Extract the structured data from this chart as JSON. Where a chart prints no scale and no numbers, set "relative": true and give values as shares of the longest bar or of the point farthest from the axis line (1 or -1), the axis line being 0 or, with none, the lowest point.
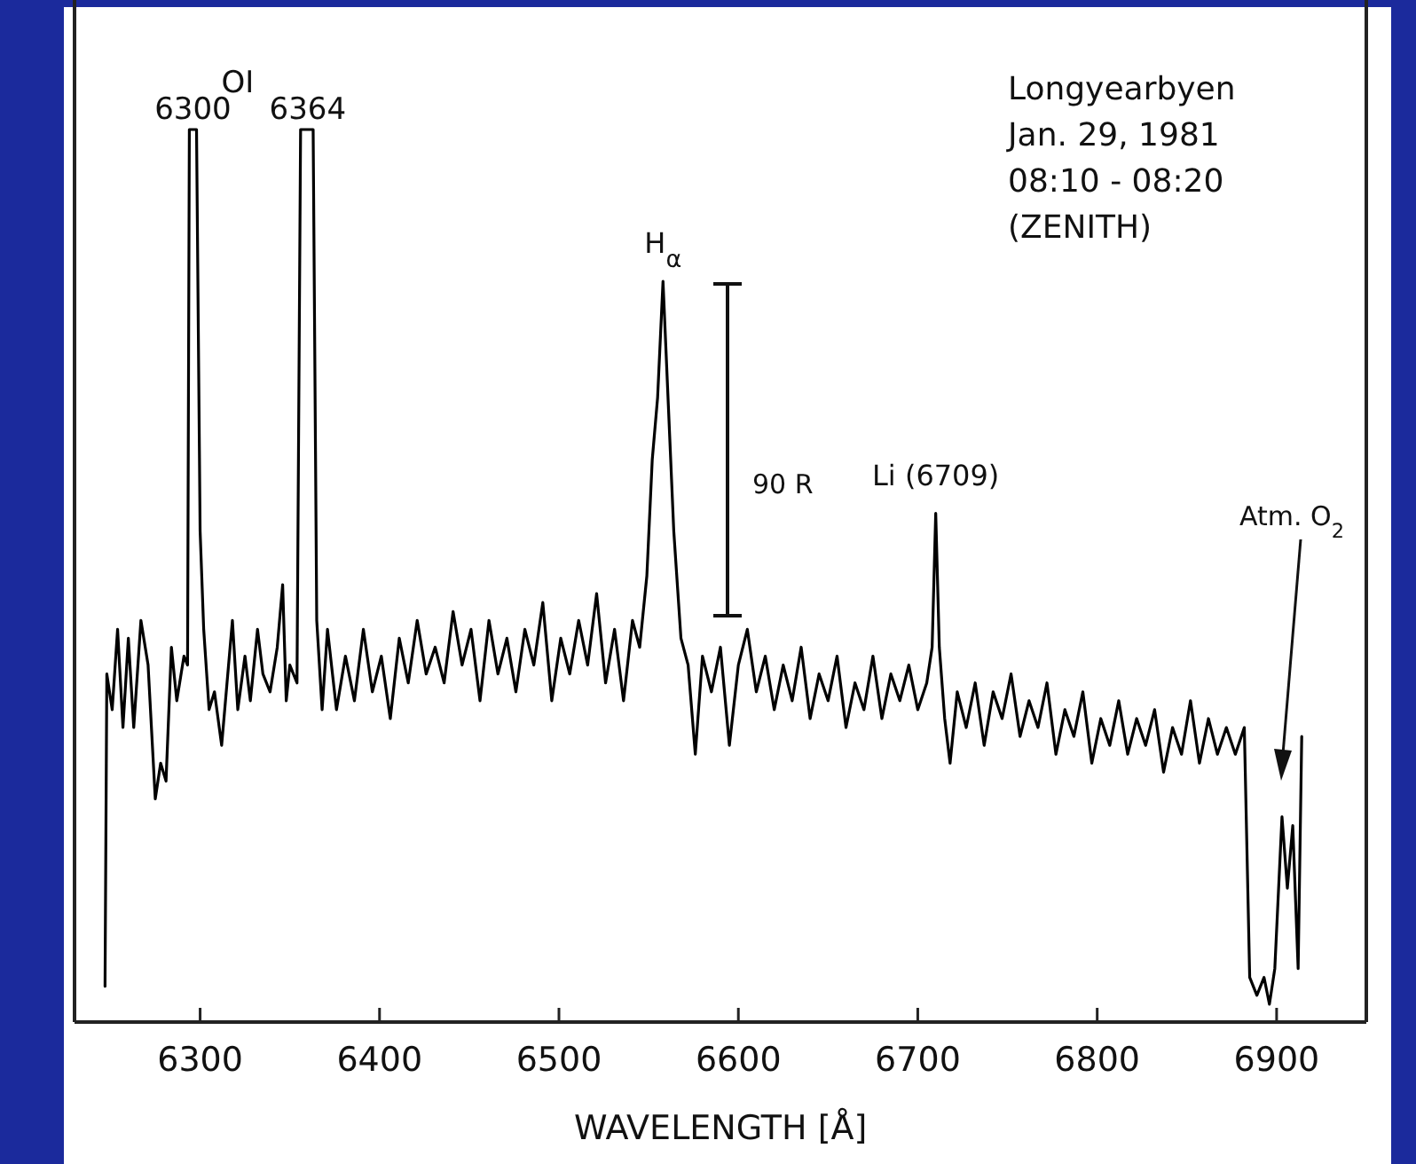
{
  "chart_data": {
    "type": "line",
    "relative": true,
    "xlabel": "WAVELENGTH  [Å]",
    "xlim": [
      6230,
      6950
    ],
    "xticks": [
      6300,
      6400,
      6500,
      6600,
      6700,
      6800,
      6900
    ],
    "series": [
      {
        "color": "#000000",
        "x": [
          6247,
          6248,
          6251,
          6254,
          6257,
          6260,
          6263,
          6267,
          6271,
          6275,
          6278,
          6281,
          6284,
          6287,
          6291,
          6293,
          6294,
          6298,
          6300,
          6302,
          6305,
          6308,
          6312,
          6315,
          6318,
          6321,
          6325,
          6328,
          6332,
          6335,
          6339,
          6343,
          6346,
          6348,
          6350,
          6354,
          6356,
          6363,
          6365,
          6368,
          6371,
          6376,
          6381,
          6386,
          6391,
          6396,
          6401,
          6406,
          6411,
          6416,
          6421,
          6426,
          6431,
          6436,
          6441,
          6446,
          6451,
          6456,
          6461,
          6466,
          6471,
          6476,
          6481,
          6486,
          6491,
          6496,
          6501,
          6506,
          6511,
          6516,
          6521,
          6526,
          6531,
          6536,
          6541,
          6545,
          6549,
          6552,
          6555,
          6558,
          6561,
          6564,
          6568,
          6572,
          6576,
          6580,
          6585,
          6590,
          6595,
          6600,
          6605,
          6610,
          6615,
          6620,
          6625,
          6630,
          6635,
          6640,
          6645,
          6650,
          6655,
          6660,
          6665,
          6670,
          6675,
          6680,
          6685,
          6690,
          6695,
          6700,
          6705,
          6708,
          6710,
          6712,
          6715,
          6718,
          6722,
          6727,
          6732,
          6737,
          6742,
          6747,
          6752,
          6757,
          6762,
          6767,
          6772,
          6777,
          6782,
          6787,
          6792,
          6797,
          6802,
          6807,
          6812,
          6817,
          6822,
          6827,
          6832,
          6837,
          6842,
          6847,
          6852,
          6857,
          6862,
          6867,
          6872,
          6877,
          6882,
          6885,
          6889,
          6893,
          6896,
          6899,
          6903,
          6906,
          6909,
          6912,
          6914
        ],
        "values": [
          0.04,
          0.39,
          0.35,
          0.44,
          0.33,
          0.43,
          0.33,
          0.45,
          0.4,
          0.25,
          0.29,
          0.27,
          0.42,
          0.36,
          0.41,
          0.4,
          1,
          1,
          0.55,
          0.44,
          0.35,
          0.37,
          0.31,
          0.38,
          0.45,
          0.35,
          0.41,
          0.36,
          0.44,
          0.39,
          0.37,
          0.42,
          0.49,
          0.36,
          0.4,
          0.38,
          1,
          1,
          0.45,
          0.35,
          0.44,
          0.35,
          0.41,
          0.36,
          0.44,
          0.37,
          0.41,
          0.34,
          0.43,
          0.38,
          0.45,
          0.39,
          0.42,
          0.38,
          0.46,
          0.4,
          0.44,
          0.36,
          0.45,
          0.39,
          0.43,
          0.37,
          0.44,
          0.4,
          0.47,
          0.36,
          0.43,
          0.39,
          0.45,
          0.4,
          0.48,
          0.38,
          0.44,
          0.36,
          0.45,
          0.42,
          0.5,
          0.63,
          0.7,
          0.83,
          0.69,
          0.55,
          0.43,
          0.4,
          0.3,
          0.41,
          0.37,
          0.42,
          0.31,
          0.4,
          0.44,
          0.37,
          0.41,
          0.35,
          0.4,
          0.36,
          0.42,
          0.34,
          0.39,
          0.36,
          0.41,
          0.33,
          0.38,
          0.35,
          0.41,
          0.34,
          0.39,
          0.36,
          0.4,
          0.35,
          0.38,
          0.42,
          0.57,
          0.42,
          0.34,
          0.29,
          0.37,
          0.33,
          0.38,
          0.31,
          0.37,
          0.34,
          0.39,
          0.32,
          0.36,
          0.33,
          0.38,
          0.3,
          0.35,
          0.32,
          0.37,
          0.29,
          0.34,
          0.31,
          0.36,
          0.3,
          0.34,
          0.31,
          0.35,
          0.28,
          0.33,
          0.3,
          0.36,
          0.29,
          0.34,
          0.3,
          0.33,
          0.3,
          0.33,
          0.05,
          0.03,
          0.05,
          0.02,
          0.06,
          0.23,
          0.15,
          0.22,
          0.06,
          0.32
        ]
      }
    ],
    "annotations": [
      "OI",
      {
        "text": "6300",
        "x": 6296,
        "y": 1
      },
      {
        "text": "6364",
        "x": 6360,
        "y": 1
      },
      {
        "text": "H$_{α}$",
        "x": 6558,
        "y": 0.83
      },
      {
        "text": "Li (6709)",
        "x": 6710,
        "y": 0.57
      },
      "Atm. O$_{2}$",
      "90 R",
      "Longyearbyen",
      "Jan. 29, 1981",
      "08:10 - 08:20",
      "(ZENITH)"
    ]
  }
}
